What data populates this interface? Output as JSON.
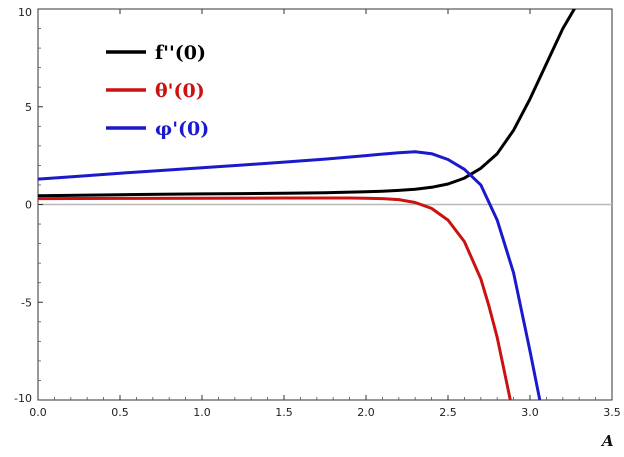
{
  "chart_data": {
    "type": "line",
    "xlabel": "A",
    "ylabel": "",
    "xlim": [
      0,
      3.5
    ],
    "ylim": [
      -10,
      10
    ],
    "x_ticks": [
      0.0,
      0.5,
      1.0,
      1.5,
      2.0,
      2.5,
      3.0,
      3.5
    ],
    "x_tick_labels": [
      "0.0",
      "0.5",
      "1.0",
      "1.5",
      "2.0",
      "2.5",
      "3.0",
      "3.5"
    ],
    "y_ticks": [
      -10,
      -5,
      0,
      5,
      10
    ],
    "y_tick_labels": [
      "-10",
      "-5",
      "0",
      "5",
      "10"
    ],
    "grid": false,
    "legend_position": "top-left",
    "zero_line": true,
    "series": [
      {
        "name": "f''(0)",
        "color": "#000000",
        "x": [
          0.0,
          0.25,
          0.5,
          0.75,
          1.0,
          1.25,
          1.5,
          1.75,
          2.0,
          2.1,
          2.2,
          2.3,
          2.4,
          2.5,
          2.6,
          2.7,
          2.8,
          2.9,
          3.0,
          3.1,
          3.2,
          3.27
        ],
        "y": [
          0.45,
          0.47,
          0.5,
          0.52,
          0.54,
          0.56,
          0.58,
          0.6,
          0.65,
          0.68,
          0.72,
          0.78,
          0.88,
          1.05,
          1.35,
          1.85,
          2.6,
          3.8,
          5.4,
          7.2,
          9.0,
          10.0
        ]
      },
      {
        "name": "θ'(0)",
        "color": "#cc1111",
        "x": [
          0.0,
          0.5,
          1.0,
          1.5,
          1.9,
          2.0,
          2.1,
          2.2,
          2.3,
          2.4,
          2.5,
          2.6,
          2.7,
          2.75,
          2.8,
          2.85,
          2.88
        ],
        "y": [
          0.3,
          0.31,
          0.32,
          0.33,
          0.33,
          0.32,
          0.3,
          0.25,
          0.1,
          -0.2,
          -0.8,
          -1.9,
          -3.8,
          -5.2,
          -6.8,
          -8.8,
          -10.0
        ]
      },
      {
        "name": "φ'(0)",
        "color": "#1a1acc",
        "x": [
          0.0,
          0.25,
          0.5,
          0.75,
          1.0,
          1.25,
          1.5,
          1.75,
          2.0,
          2.1,
          2.2,
          2.3,
          2.4,
          2.5,
          2.6,
          2.7,
          2.8,
          2.9,
          3.0,
          3.06
        ],
        "y": [
          1.3,
          1.45,
          1.6,
          1.74,
          1.88,
          2.02,
          2.17,
          2.32,
          2.5,
          2.58,
          2.65,
          2.7,
          2.6,
          2.3,
          1.8,
          1.0,
          -0.8,
          -3.5,
          -7.5,
          -10.0
        ]
      }
    ]
  }
}
